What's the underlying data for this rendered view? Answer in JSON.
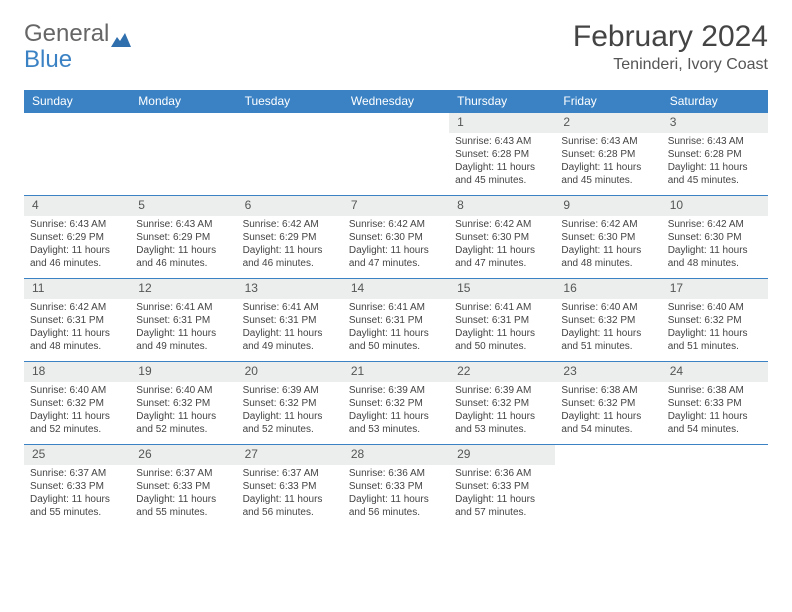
{
  "brand": {
    "part1": "General",
    "part2": "Blue"
  },
  "title": "February 2024",
  "location": "Teninderi, Ivory Coast",
  "colors": {
    "header_bg": "#3a82c4",
    "header_text": "#ffffff",
    "daynum_bg": "#eceeee",
    "text": "#444444",
    "border": "#3a82c4"
  },
  "dow": [
    "Sunday",
    "Monday",
    "Tuesday",
    "Wednesday",
    "Thursday",
    "Friday",
    "Saturday"
  ],
  "weeks": [
    [
      {
        "n": "",
        "sr": "",
        "ss": "",
        "dl": ""
      },
      {
        "n": "",
        "sr": "",
        "ss": "",
        "dl": ""
      },
      {
        "n": "",
        "sr": "",
        "ss": "",
        "dl": ""
      },
      {
        "n": "",
        "sr": "",
        "ss": "",
        "dl": ""
      },
      {
        "n": "1",
        "sr": "Sunrise: 6:43 AM",
        "ss": "Sunset: 6:28 PM",
        "dl": "Daylight: 11 hours and 45 minutes."
      },
      {
        "n": "2",
        "sr": "Sunrise: 6:43 AM",
        "ss": "Sunset: 6:28 PM",
        "dl": "Daylight: 11 hours and 45 minutes."
      },
      {
        "n": "3",
        "sr": "Sunrise: 6:43 AM",
        "ss": "Sunset: 6:28 PM",
        "dl": "Daylight: 11 hours and 45 minutes."
      }
    ],
    [
      {
        "n": "4",
        "sr": "Sunrise: 6:43 AM",
        "ss": "Sunset: 6:29 PM",
        "dl": "Daylight: 11 hours and 46 minutes."
      },
      {
        "n": "5",
        "sr": "Sunrise: 6:43 AM",
        "ss": "Sunset: 6:29 PM",
        "dl": "Daylight: 11 hours and 46 minutes."
      },
      {
        "n": "6",
        "sr": "Sunrise: 6:42 AM",
        "ss": "Sunset: 6:29 PM",
        "dl": "Daylight: 11 hours and 46 minutes."
      },
      {
        "n": "7",
        "sr": "Sunrise: 6:42 AM",
        "ss": "Sunset: 6:30 PM",
        "dl": "Daylight: 11 hours and 47 minutes."
      },
      {
        "n": "8",
        "sr": "Sunrise: 6:42 AM",
        "ss": "Sunset: 6:30 PM",
        "dl": "Daylight: 11 hours and 47 minutes."
      },
      {
        "n": "9",
        "sr": "Sunrise: 6:42 AM",
        "ss": "Sunset: 6:30 PM",
        "dl": "Daylight: 11 hours and 48 minutes."
      },
      {
        "n": "10",
        "sr": "Sunrise: 6:42 AM",
        "ss": "Sunset: 6:30 PM",
        "dl": "Daylight: 11 hours and 48 minutes."
      }
    ],
    [
      {
        "n": "11",
        "sr": "Sunrise: 6:42 AM",
        "ss": "Sunset: 6:31 PM",
        "dl": "Daylight: 11 hours and 48 minutes."
      },
      {
        "n": "12",
        "sr": "Sunrise: 6:41 AM",
        "ss": "Sunset: 6:31 PM",
        "dl": "Daylight: 11 hours and 49 minutes."
      },
      {
        "n": "13",
        "sr": "Sunrise: 6:41 AM",
        "ss": "Sunset: 6:31 PM",
        "dl": "Daylight: 11 hours and 49 minutes."
      },
      {
        "n": "14",
        "sr": "Sunrise: 6:41 AM",
        "ss": "Sunset: 6:31 PM",
        "dl": "Daylight: 11 hours and 50 minutes."
      },
      {
        "n": "15",
        "sr": "Sunrise: 6:41 AM",
        "ss": "Sunset: 6:31 PM",
        "dl": "Daylight: 11 hours and 50 minutes."
      },
      {
        "n": "16",
        "sr": "Sunrise: 6:40 AM",
        "ss": "Sunset: 6:32 PM",
        "dl": "Daylight: 11 hours and 51 minutes."
      },
      {
        "n": "17",
        "sr": "Sunrise: 6:40 AM",
        "ss": "Sunset: 6:32 PM",
        "dl": "Daylight: 11 hours and 51 minutes."
      }
    ],
    [
      {
        "n": "18",
        "sr": "Sunrise: 6:40 AM",
        "ss": "Sunset: 6:32 PM",
        "dl": "Daylight: 11 hours and 52 minutes."
      },
      {
        "n": "19",
        "sr": "Sunrise: 6:40 AM",
        "ss": "Sunset: 6:32 PM",
        "dl": "Daylight: 11 hours and 52 minutes."
      },
      {
        "n": "20",
        "sr": "Sunrise: 6:39 AM",
        "ss": "Sunset: 6:32 PM",
        "dl": "Daylight: 11 hours and 52 minutes."
      },
      {
        "n": "21",
        "sr": "Sunrise: 6:39 AM",
        "ss": "Sunset: 6:32 PM",
        "dl": "Daylight: 11 hours and 53 minutes."
      },
      {
        "n": "22",
        "sr": "Sunrise: 6:39 AM",
        "ss": "Sunset: 6:32 PM",
        "dl": "Daylight: 11 hours and 53 minutes."
      },
      {
        "n": "23",
        "sr": "Sunrise: 6:38 AM",
        "ss": "Sunset: 6:32 PM",
        "dl": "Daylight: 11 hours and 54 minutes."
      },
      {
        "n": "24",
        "sr": "Sunrise: 6:38 AM",
        "ss": "Sunset: 6:33 PM",
        "dl": "Daylight: 11 hours and 54 minutes."
      }
    ],
    [
      {
        "n": "25",
        "sr": "Sunrise: 6:37 AM",
        "ss": "Sunset: 6:33 PM",
        "dl": "Daylight: 11 hours and 55 minutes."
      },
      {
        "n": "26",
        "sr": "Sunrise: 6:37 AM",
        "ss": "Sunset: 6:33 PM",
        "dl": "Daylight: 11 hours and 55 minutes."
      },
      {
        "n": "27",
        "sr": "Sunrise: 6:37 AM",
        "ss": "Sunset: 6:33 PM",
        "dl": "Daylight: 11 hours and 56 minutes."
      },
      {
        "n": "28",
        "sr": "Sunrise: 6:36 AM",
        "ss": "Sunset: 6:33 PM",
        "dl": "Daylight: 11 hours and 56 minutes."
      },
      {
        "n": "29",
        "sr": "Sunrise: 6:36 AM",
        "ss": "Sunset: 6:33 PM",
        "dl": "Daylight: 11 hours and 57 minutes."
      },
      {
        "n": "",
        "sr": "",
        "ss": "",
        "dl": ""
      },
      {
        "n": "",
        "sr": "",
        "ss": "",
        "dl": ""
      }
    ]
  ]
}
